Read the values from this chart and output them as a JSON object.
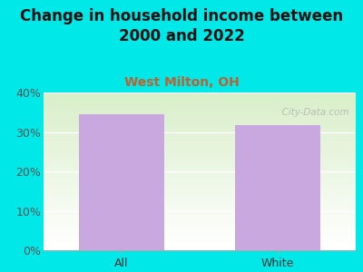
{
  "title": "Change in household income between\n2000 and 2022",
  "subtitle": "West Milton, OH",
  "categories": [
    "All",
    "White"
  ],
  "values": [
    34.5,
    31.7
  ],
  "bar_color": "#c9a8e0",
  "title_fontsize": 12,
  "subtitle_fontsize": 10,
  "subtitle_color": "#c06030",
  "title_color": "#111111",
  "tick_label_fontsize": 9,
  "ylim_max": 0.4,
  "yticks": [
    0.0,
    0.1,
    0.2,
    0.3,
    0.4
  ],
  "ytick_labels": [
    "0%",
    "10%",
    "20%",
    "30%",
    "40%"
  ],
  "background_outer": "#00e8e8",
  "watermark": "  City-Data.com"
}
